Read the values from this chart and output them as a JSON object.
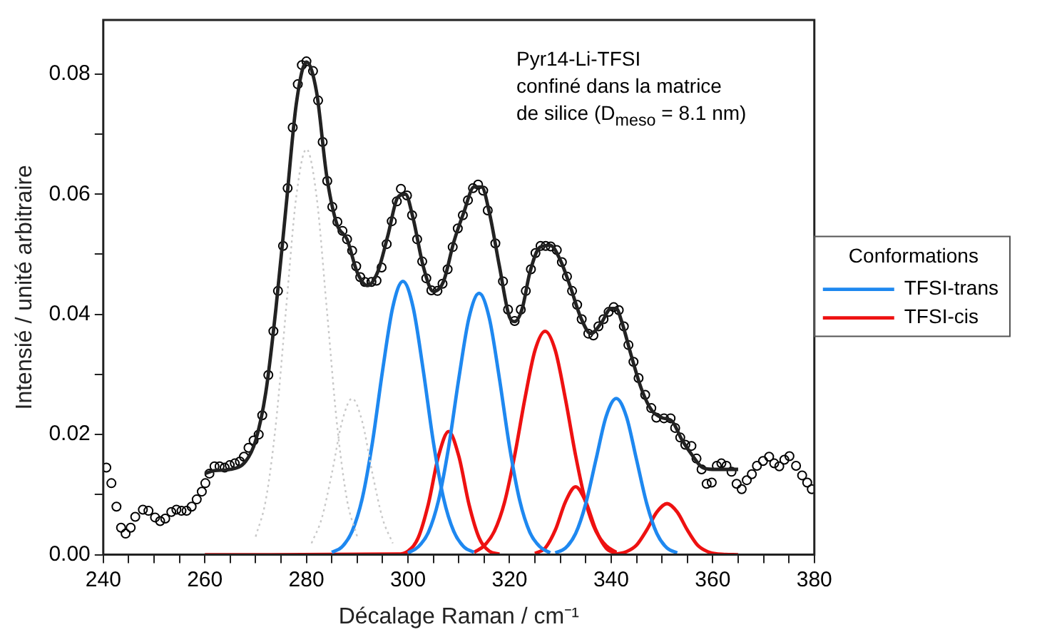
{
  "chart_data": {
    "type": "line",
    "xlabel": "Décalage Raman / cm⁻¹",
    "ylabel": "Intensié / unité arbitraire",
    "legend_title": "Conformations",
    "annotations": [
      "Pyr14-Li-TFSI",
      "confiné dans la matrice",
      "de silice (D$_{meso}$ = 8.1 nm)"
    ],
    "xlim": [
      240,
      380
    ],
    "xticks": [
      240,
      {
        "value": 245,
        "label": null
      },
      {
        "value": 250,
        "label": null
      },
      {
        "value": 255,
        "label": null
      },
      260,
      {
        "value": 265,
        "label": null
      },
      {
        "value": 270,
        "label": null
      },
      {
        "value": 275,
        "label": null
      },
      280,
      {
        "value": 285,
        "label": null
      },
      {
        "value": 290,
        "label": null
      },
      {
        "value": 295,
        "label": null
      },
      300,
      {
        "value": 305,
        "label": null
      },
      {
        "value": 310,
        "label": null
      },
      {
        "value": 315,
        "label": null
      },
      320,
      {
        "value": 325,
        "label": null
      },
      {
        "value": 330,
        "label": null
      },
      {
        "value": 335,
        "label": null
      },
      340,
      {
        "value": 345,
        "label": null
      },
      {
        "value": 350,
        "label": null
      },
      {
        "value": 355,
        "label": null
      },
      360,
      {
        "value": 365,
        "label": null
      },
      {
        "value": 370,
        "label": null
      },
      {
        "value": 375,
        "label": null
      },
      380
    ],
    "ylim": [
      0,
      0.089
    ],
    "yticks": [
      {
        "value": 0,
        "label": "0.00"
      },
      {
        "value": 0.01,
        "label": null
      },
      {
        "value": 0.02,
        "label": "0.02"
      },
      {
        "value": 0.03,
        "label": null
      },
      {
        "value": 0.04,
        "label": "0.04"
      },
      {
        "value": 0.05,
        "label": null
      },
      {
        "value": 0.06,
        "label": "0.06"
      },
      {
        "value": 0.07,
        "label": null
      },
      {
        "value": 0.08,
        "label": "0.08"
      }
    ],
    "grid": false,
    "legend": "right",
    "series": [
      {
        "type": "line",
        "color": "#c8c8c8",
        "line_style": "dotted",
        "x": [
          270,
          272,
          274,
          276,
          278,
          280,
          282,
          284,
          286,
          288,
          290
        ],
        "values": [
          0.003,
          0.0091,
          0.0219,
          0.041,
          0.0596,
          0.0675,
          0.0596,
          0.041,
          0.0219,
          0.0091,
          0.003
        ]
      },
      {
        "type": "line",
        "color": "#c8c8c8",
        "line_style": "dotted",
        "x": [
          281,
          283,
          285,
          287,
          289,
          291,
          293,
          295,
          297
        ],
        "values": [
          0.0019,
          0.006,
          0.0135,
          0.0221,
          0.026,
          0.0221,
          0.0135,
          0.006,
          0.0019
        ]
      },
      {
        "type": "line",
        "name": "TFSI-trans",
        "color": "#1e88f0",
        "x": [
          285,
          287,
          289,
          291,
          293,
          295,
          297,
          299,
          301,
          303,
          305,
          307,
          309,
          311,
          313
        ],
        "values": [
          0.0004,
          0.0013,
          0.0039,
          0.0094,
          0.0187,
          0.0307,
          0.0412,
          0.0455,
          0.0412,
          0.0307,
          0.0187,
          0.0094,
          0.0039,
          0.0013,
          0.0004
        ]
      },
      {
        "type": "line",
        "color": "#1e88f0",
        "x": [
          300,
          302,
          304,
          306,
          308,
          310,
          312,
          314,
          316,
          318,
          320,
          322,
          324,
          326,
          328
        ],
        "values": [
          0.0003,
          0.0013,
          0.0037,
          0.009,
          0.0179,
          0.0293,
          0.0394,
          0.0435,
          0.0394,
          0.0293,
          0.0179,
          0.009,
          0.0037,
          0.0013,
          0.0003
        ]
      },
      {
        "type": "line",
        "color": "#1e88f0",
        "x": [
          329,
          331,
          333,
          335,
          337,
          339,
          341,
          343,
          345,
          347,
          349,
          351,
          353
        ],
        "values": [
          0.0003,
          0.0011,
          0.0035,
          0.0085,
          0.0158,
          0.023,
          0.026,
          0.023,
          0.0158,
          0.0085,
          0.0035,
          0.0011,
          0.0003
        ]
      },
      {
        "type": "line",
        "name": "TFSI-cis",
        "color": "#ee1111",
        "x": [
          260,
          298,
          300,
          302,
          304,
          306,
          308,
          310,
          312,
          314,
          316,
          318
        ],
        "values": [
          0,
          0.0001,
          0.0006,
          0.0028,
          0.0084,
          0.0164,
          0.0205,
          0.0164,
          0.0084,
          0.0028,
          0.0006,
          0.0001
        ]
      },
      {
        "type": "line",
        "color": "#ee1111",
        "x": [
          313,
          315,
          317,
          319,
          321,
          323,
          325,
          327,
          329,
          331,
          333,
          335,
          337,
          339,
          341
        ],
        "values": [
          0.0004,
          0.0015,
          0.0039,
          0.0087,
          0.0165,
          0.0259,
          0.034,
          0.0372,
          0.034,
          0.0259,
          0.0165,
          0.0087,
          0.0039,
          0.0015,
          0.0004
        ]
      },
      {
        "type": "line",
        "color": "#ee1111",
        "x": [
          325,
          327,
          329,
          331,
          333,
          335,
          337,
          339,
          341
        ],
        "values": [
          0.0002,
          0.0011,
          0.0041,
          0.0088,
          0.0113,
          0.0088,
          0.0041,
          0.0011,
          0.0002
        ]
      },
      {
        "type": "line",
        "color": "#ee1111",
        "x": [
          341,
          343,
          345,
          347,
          349,
          351,
          353,
          355,
          357,
          359,
          361,
          365
        ],
        "values": [
          0.0001,
          0.0005,
          0.0016,
          0.0041,
          0.0071,
          0.0085,
          0.0071,
          0.0041,
          0.0016,
          0.0005,
          0.0001,
          0
        ]
      },
      {
        "type": "line",
        "color": "#222222",
        "x": [
          260,
          262,
          265,
          268,
          270,
          272,
          274,
          276,
          278,
          280,
          282,
          284,
          286,
          288,
          290,
          292,
          294,
          296,
          298,
          299.5,
          301,
          303,
          305,
          307,
          309,
          311,
          313,
          314.5,
          316,
          318,
          320,
          321,
          322.5,
          324,
          326,
          328,
          330,
          332,
          334,
          336,
          338,
          340,
          341,
          342,
          344,
          346,
          348,
          350,
          352,
          354,
          356,
          358,
          360,
          362,
          365
        ],
        "values": [
          0.0135,
          0.014,
          0.0142,
          0.0155,
          0.019,
          0.027,
          0.041,
          0.058,
          0.075,
          0.082,
          0.077,
          0.063,
          0.055,
          0.0525,
          0.047,
          0.0448,
          0.047,
          0.053,
          0.0595,
          0.06,
          0.056,
          0.048,
          0.0438,
          0.0455,
          0.052,
          0.057,
          0.0612,
          0.0612,
          0.057,
          0.048,
          0.0395,
          0.0388,
          0.041,
          0.047,
          0.0512,
          0.0515,
          0.049,
          0.0445,
          0.0395,
          0.0368,
          0.0385,
          0.041,
          0.041,
          0.039,
          0.033,
          0.0275,
          0.024,
          0.0228,
          0.0222,
          0.019,
          0.0165,
          0.0145,
          0.0142,
          0.0142,
          0.0142
        ]
      },
      {
        "type": "scatter",
        "color": "#000000",
        "marker": "circle",
        "x": [
          240.6,
          241.6,
          242.6,
          243.5,
          244.4,
          245.4,
          246.3,
          247.8,
          248.9,
          250.2,
          251.2,
          252.2,
          253.4,
          254.4,
          255.4,
          256.4,
          257.4,
          258.4,
          259.4,
          260.1,
          260.9,
          261.9,
          262.9,
          263.9,
          264.9,
          265.9,
          266.9,
          267.7,
          268.6,
          269.6,
          270.6,
          271.3,
          272.5,
          273.5,
          274.4,
          275.4,
          276.3,
          277.3,
          278.3,
          279.1,
          280.0,
          281.3,
          282.3,
          283.2,
          284.1,
          285.1,
          286.1,
          287.1,
          288.0,
          289.0,
          289.8,
          290.6,
          291.5,
          292.8,
          293.8,
          294.8,
          295.8,
          296.8,
          297.8,
          298.6,
          299.8,
          300.8,
          301.8,
          302.8,
          303.6,
          304.6,
          305.8,
          306.8,
          307.8,
          308.8,
          309.8,
          310.8,
          311.8,
          312.8,
          313.8,
          314.8,
          315.7,
          317.2,
          318.7,
          319.7,
          321.0,
          322.2,
          323.2,
          324.2,
          325.1,
          326.1,
          327.1,
          328.1,
          329.3,
          330.3,
          331.3,
          332.3,
          333.3,
          334.2,
          335.5,
          336.5,
          337.5,
          338.5,
          339.5,
          340.5,
          341.5,
          342.5,
          343.4,
          344.4,
          345.4,
          346.7,
          347.9,
          348.9,
          350.4,
          351.7,
          352.6,
          353.6,
          354.6,
          355.8,
          356.8,
          357.8,
          358.8,
          359.8,
          360.8,
          361.7,
          362.7,
          363.7,
          364.7,
          365.7,
          366.7,
          367.7,
          368.7,
          369.9,
          371.1,
          372.1,
          373.1,
          374.1,
          375.1,
          376.4,
          377.6,
          378.6,
          379.5
        ],
        "values": [
          0.0145,
          0.0119,
          0.008,
          0.0045,
          0.0035,
          0.0045,
          0.0063,
          0.0075,
          0.0073,
          0.0062,
          0.0056,
          0.006,
          0.0071,
          0.0075,
          0.0073,
          0.0073,
          0.008,
          0.0092,
          0.0105,
          0.0119,
          0.0135,
          0.0147,
          0.0147,
          0.0145,
          0.0149,
          0.0152,
          0.0155,
          0.0163,
          0.0178,
          0.019,
          0.02,
          0.0232,
          0.0299,
          0.0372,
          0.0439,
          0.0514,
          0.061,
          0.0711,
          0.0783,
          0.0815,
          0.0821,
          0.0805,
          0.0756,
          0.0687,
          0.0622,
          0.0579,
          0.0554,
          0.0539,
          0.0525,
          0.0506,
          0.048,
          0.0462,
          0.0454,
          0.0454,
          0.0456,
          0.0478,
          0.0517,
          0.0555,
          0.0588,
          0.0609,
          0.0598,
          0.0565,
          0.0525,
          0.0488,
          0.046,
          0.044,
          0.0439,
          0.0451,
          0.0475,
          0.0512,
          0.0543,
          0.0565,
          0.059,
          0.061,
          0.0616,
          0.0606,
          0.0573,
          0.0518,
          0.0455,
          0.0408,
          0.0389,
          0.0408,
          0.0439,
          0.0475,
          0.0502,
          0.0514,
          0.0514,
          0.0513,
          0.0507,
          0.0487,
          0.0463,
          0.0439,
          0.0416,
          0.0392,
          0.0368,
          0.0365,
          0.038,
          0.0392,
          0.0404,
          0.0412,
          0.0407,
          0.038,
          0.0349,
          0.0321,
          0.0294,
          0.0266,
          0.0244,
          0.0228,
          0.0227,
          0.0227,
          0.0211,
          0.0195,
          0.0183,
          0.0181,
          0.016,
          0.0142,
          0.0118,
          0.012,
          0.0148,
          0.0152,
          0.0148,
          0.0138,
          0.0118,
          0.0109,
          0.0124,
          0.0134,
          0.0148,
          0.0156,
          0.0163,
          0.0152,
          0.0147,
          0.0158,
          0.0164,
          0.0148,
          0.0132,
          0.012,
          0.0109
        ]
      }
    ]
  }
}
